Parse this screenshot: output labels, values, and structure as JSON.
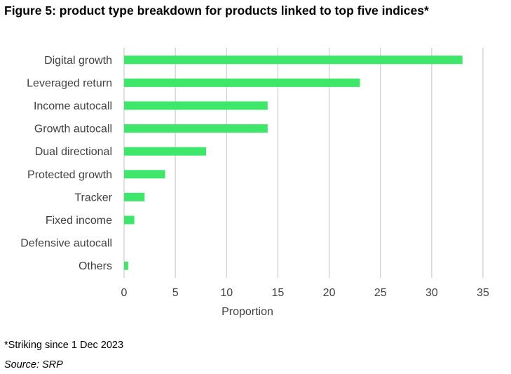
{
  "title": "Figure 5: product type breakdown for products linked to top five indices*",
  "footnote": "*Striking since 1 Dec 2023",
  "source": "Source: SRP",
  "colors": {
    "bar": "#3ee66a",
    "grid": "#d0d0d0",
    "text": "#404040"
  },
  "chart_data": {
    "type": "bar",
    "orientation": "horizontal",
    "categories": [
      "Digital growth",
      "Leveraged return",
      "Income autocall",
      "Growth autocall",
      "Dual directional",
      "Protected growth",
      "Tracker",
      "Fixed income",
      "Defensive autocall",
      "Others"
    ],
    "values": [
      33,
      23,
      14,
      14,
      8,
      4,
      2,
      1,
      0,
      0.4
    ],
    "xlabel": "Proportion",
    "ylabel": "",
    "xlim": [
      0,
      35
    ],
    "xticks": [
      0,
      5,
      10,
      15,
      20,
      25,
      30,
      35
    ],
    "grid": true,
    "legend": "none"
  }
}
